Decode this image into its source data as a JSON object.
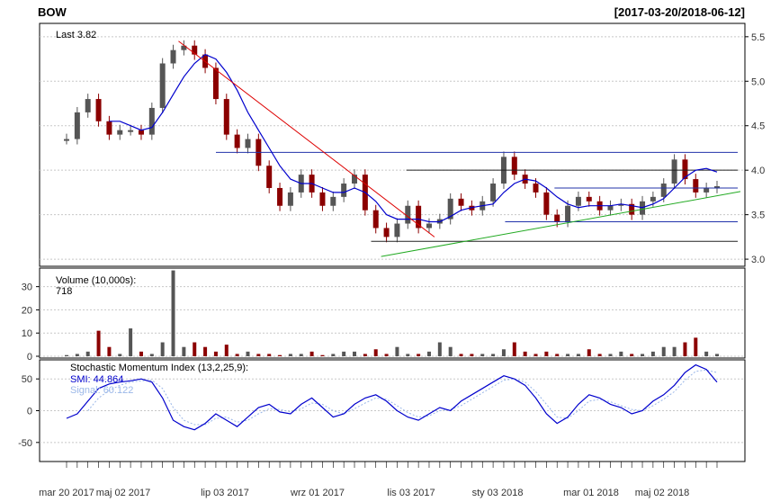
{
  "chart_data": {
    "type": "line",
    "ticker": "BOW",
    "date_range": "[2017-03-20/2018-06-12]",
    "last_label": "Last 3.82",
    "x_tick_labels": [
      "mar 20 2017",
      "maj 02 2017",
      "lip 03 2017",
      "wrz 01 2017",
      "lis 03 2017",
      "sty 03 2018",
      "mar 01 2018",
      "maj 02 2018"
    ],
    "price": {
      "ylim": [
        2.92,
        5.65
      ],
      "yticks": [
        3.0,
        3.5,
        4.0,
        4.5,
        5.0,
        5.5
      ],
      "close": [
        4.35,
        4.65,
        4.8,
        4.55,
        4.4,
        4.45,
        4.45,
        4.4,
        4.7,
        5.2,
        5.35,
        5.4,
        5.3,
        5.15,
        4.8,
        4.4,
        4.25,
        4.35,
        4.05,
        3.8,
        3.6,
        3.75,
        3.95,
        3.75,
        3.6,
        3.7,
        3.85,
        3.95,
        3.55,
        3.35,
        3.25,
        3.4,
        3.6,
        3.35,
        3.4,
        3.45,
        3.68,
        3.6,
        3.55,
        3.65,
        3.85,
        4.15,
        3.95,
        3.85,
        3.75,
        3.5,
        3.42,
        3.6,
        3.7,
        3.65,
        3.55,
        3.6,
        3.62,
        3.5,
        3.65,
        3.7,
        3.85,
        4.12,
        3.9,
        3.75,
        3.8,
        3.82
      ],
      "sma": [
        null,
        null,
        null,
        null,
        4.55,
        4.55,
        4.5,
        4.45,
        4.48,
        4.65,
        4.85,
        5.05,
        5.2,
        5.3,
        5.25,
        5.1,
        4.9,
        4.65,
        4.45,
        4.25,
        4.05,
        3.9,
        3.85,
        3.85,
        3.8,
        3.75,
        3.75,
        3.8,
        3.75,
        3.65,
        3.5,
        3.45,
        3.45,
        3.45,
        3.42,
        3.42,
        3.48,
        3.55,
        3.58,
        3.6,
        3.62,
        3.75,
        3.85,
        3.9,
        3.88,
        3.8,
        3.7,
        3.62,
        3.58,
        3.6,
        3.6,
        3.6,
        3.62,
        3.6,
        3.58,
        3.62,
        3.68,
        3.8,
        3.92,
        4.0,
        4.02,
        3.98
      ],
      "hlines": [
        {
          "y": 4.2,
          "from": 0.25
        },
        {
          "y": 4.0,
          "from": 0.52
        },
        {
          "y": 3.42,
          "from": 0.66
        },
        {
          "y": 3.2,
          "from": 0.47
        },
        {
          "y": 3.8,
          "from": 0.73
        }
      ]
    },
    "volume": {
      "label": "Volume (10,000s):",
      "last": "718",
      "ylim": [
        0,
        38
      ],
      "yticks": [
        0,
        10,
        20,
        30
      ],
      "values": [
        0.5,
        1,
        2,
        11,
        4,
        1,
        12,
        2,
        1,
        6,
        37,
        4,
        6,
        4,
        2,
        5,
        1,
        2,
        1,
        1,
        0.5,
        1,
        1,
        2,
        0.5,
        1,
        2,
        2,
        1,
        3,
        1,
        4,
        1,
        1,
        2,
        6,
        4,
        1,
        1,
        1,
        1,
        3,
        6,
        2,
        1,
        2,
        1,
        1,
        1,
        3,
        1,
        1,
        2,
        1,
        1,
        2,
        4,
        4,
        6,
        8,
        2,
        1
      ]
    },
    "smi": {
      "label": "Stochastic Momentum Index (13,2,25,9):",
      "smi_label": "SMI: 44.864",
      "signal_label": "Signal: 60.122",
      "ylim": [
        -80,
        80
      ],
      "yticks": [
        -50,
        0,
        50
      ],
      "smi": [
        -12,
        -5,
        15,
        35,
        42,
        45,
        47,
        50,
        45,
        20,
        -15,
        -25,
        -30,
        -20,
        -5,
        -15,
        -25,
        -10,
        5,
        10,
        -2,
        -5,
        10,
        20,
        5,
        -10,
        -5,
        10,
        20,
        25,
        15,
        0,
        -10,
        -15,
        -5,
        5,
        0,
        15,
        25,
        35,
        45,
        55,
        50,
        40,
        20,
        -5,
        -20,
        -10,
        10,
        25,
        20,
        10,
        5,
        -5,
        0,
        15,
        25,
        40,
        60,
        72,
        65,
        45
      ],
      "signal": [
        null,
        null,
        0,
        20,
        32,
        40,
        45,
        47,
        48,
        35,
        5,
        -15,
        -22,
        -22,
        -12,
        -10,
        -18,
        -15,
        -5,
        3,
        2,
        -2,
        3,
        12,
        10,
        0,
        -5,
        3,
        12,
        20,
        18,
        8,
        -3,
        -10,
        -8,
        0,
        2,
        8,
        18,
        28,
        38,
        48,
        50,
        45,
        30,
        10,
        -10,
        -12,
        0,
        15,
        18,
        14,
        8,
        2,
        0,
        8,
        18,
        30,
        48,
        62,
        64,
        60
      ]
    },
    "colors": {
      "up": "#555555",
      "down": "#8B0000",
      "sma": "#0000CD",
      "trend_red": "#DD0000",
      "trend_green": "#22AA22",
      "hline_blue": "#2233AA",
      "hline_dark": "#222222",
      "signal": "#9AB7E8",
      "axis_text": "#333333"
    }
  }
}
